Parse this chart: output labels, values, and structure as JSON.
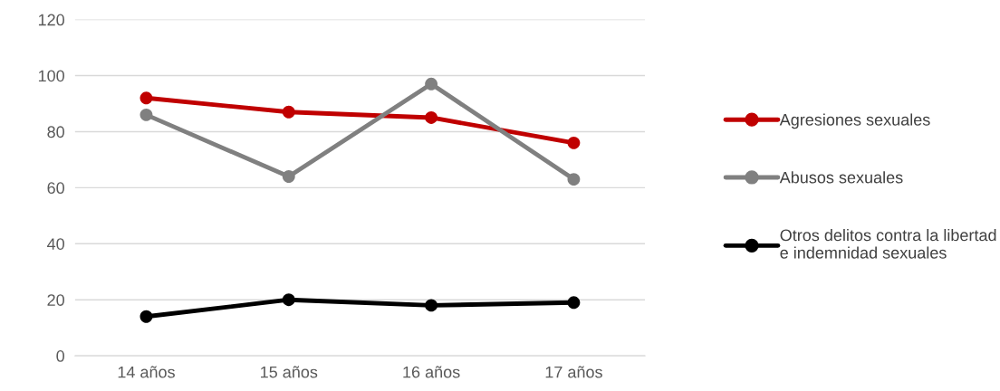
{
  "chart_data": {
    "type": "line",
    "categories": [
      "14 años",
      "15 años",
      "16 años",
      "17 años"
    ],
    "series": [
      {
        "name": "Agresiones sexuales",
        "color": "#c00000",
        "values": [
          92,
          87,
          85,
          76
        ]
      },
      {
        "name": "Abusos sexuales",
        "color": "#808080",
        "values": [
          86,
          64,
          97,
          63
        ]
      },
      {
        "name": "Otros delitos contra la libertad\ne indemnidad sexuales",
        "color": "#000000",
        "values": [
          14,
          20,
          18,
          19
        ]
      }
    ],
    "ylim": [
      0,
      120
    ],
    "yticks": [
      0,
      20,
      40,
      60,
      80,
      100,
      120
    ],
    "grid": "y",
    "legend": "right",
    "marker": "circle",
    "line_style": "solid"
  }
}
